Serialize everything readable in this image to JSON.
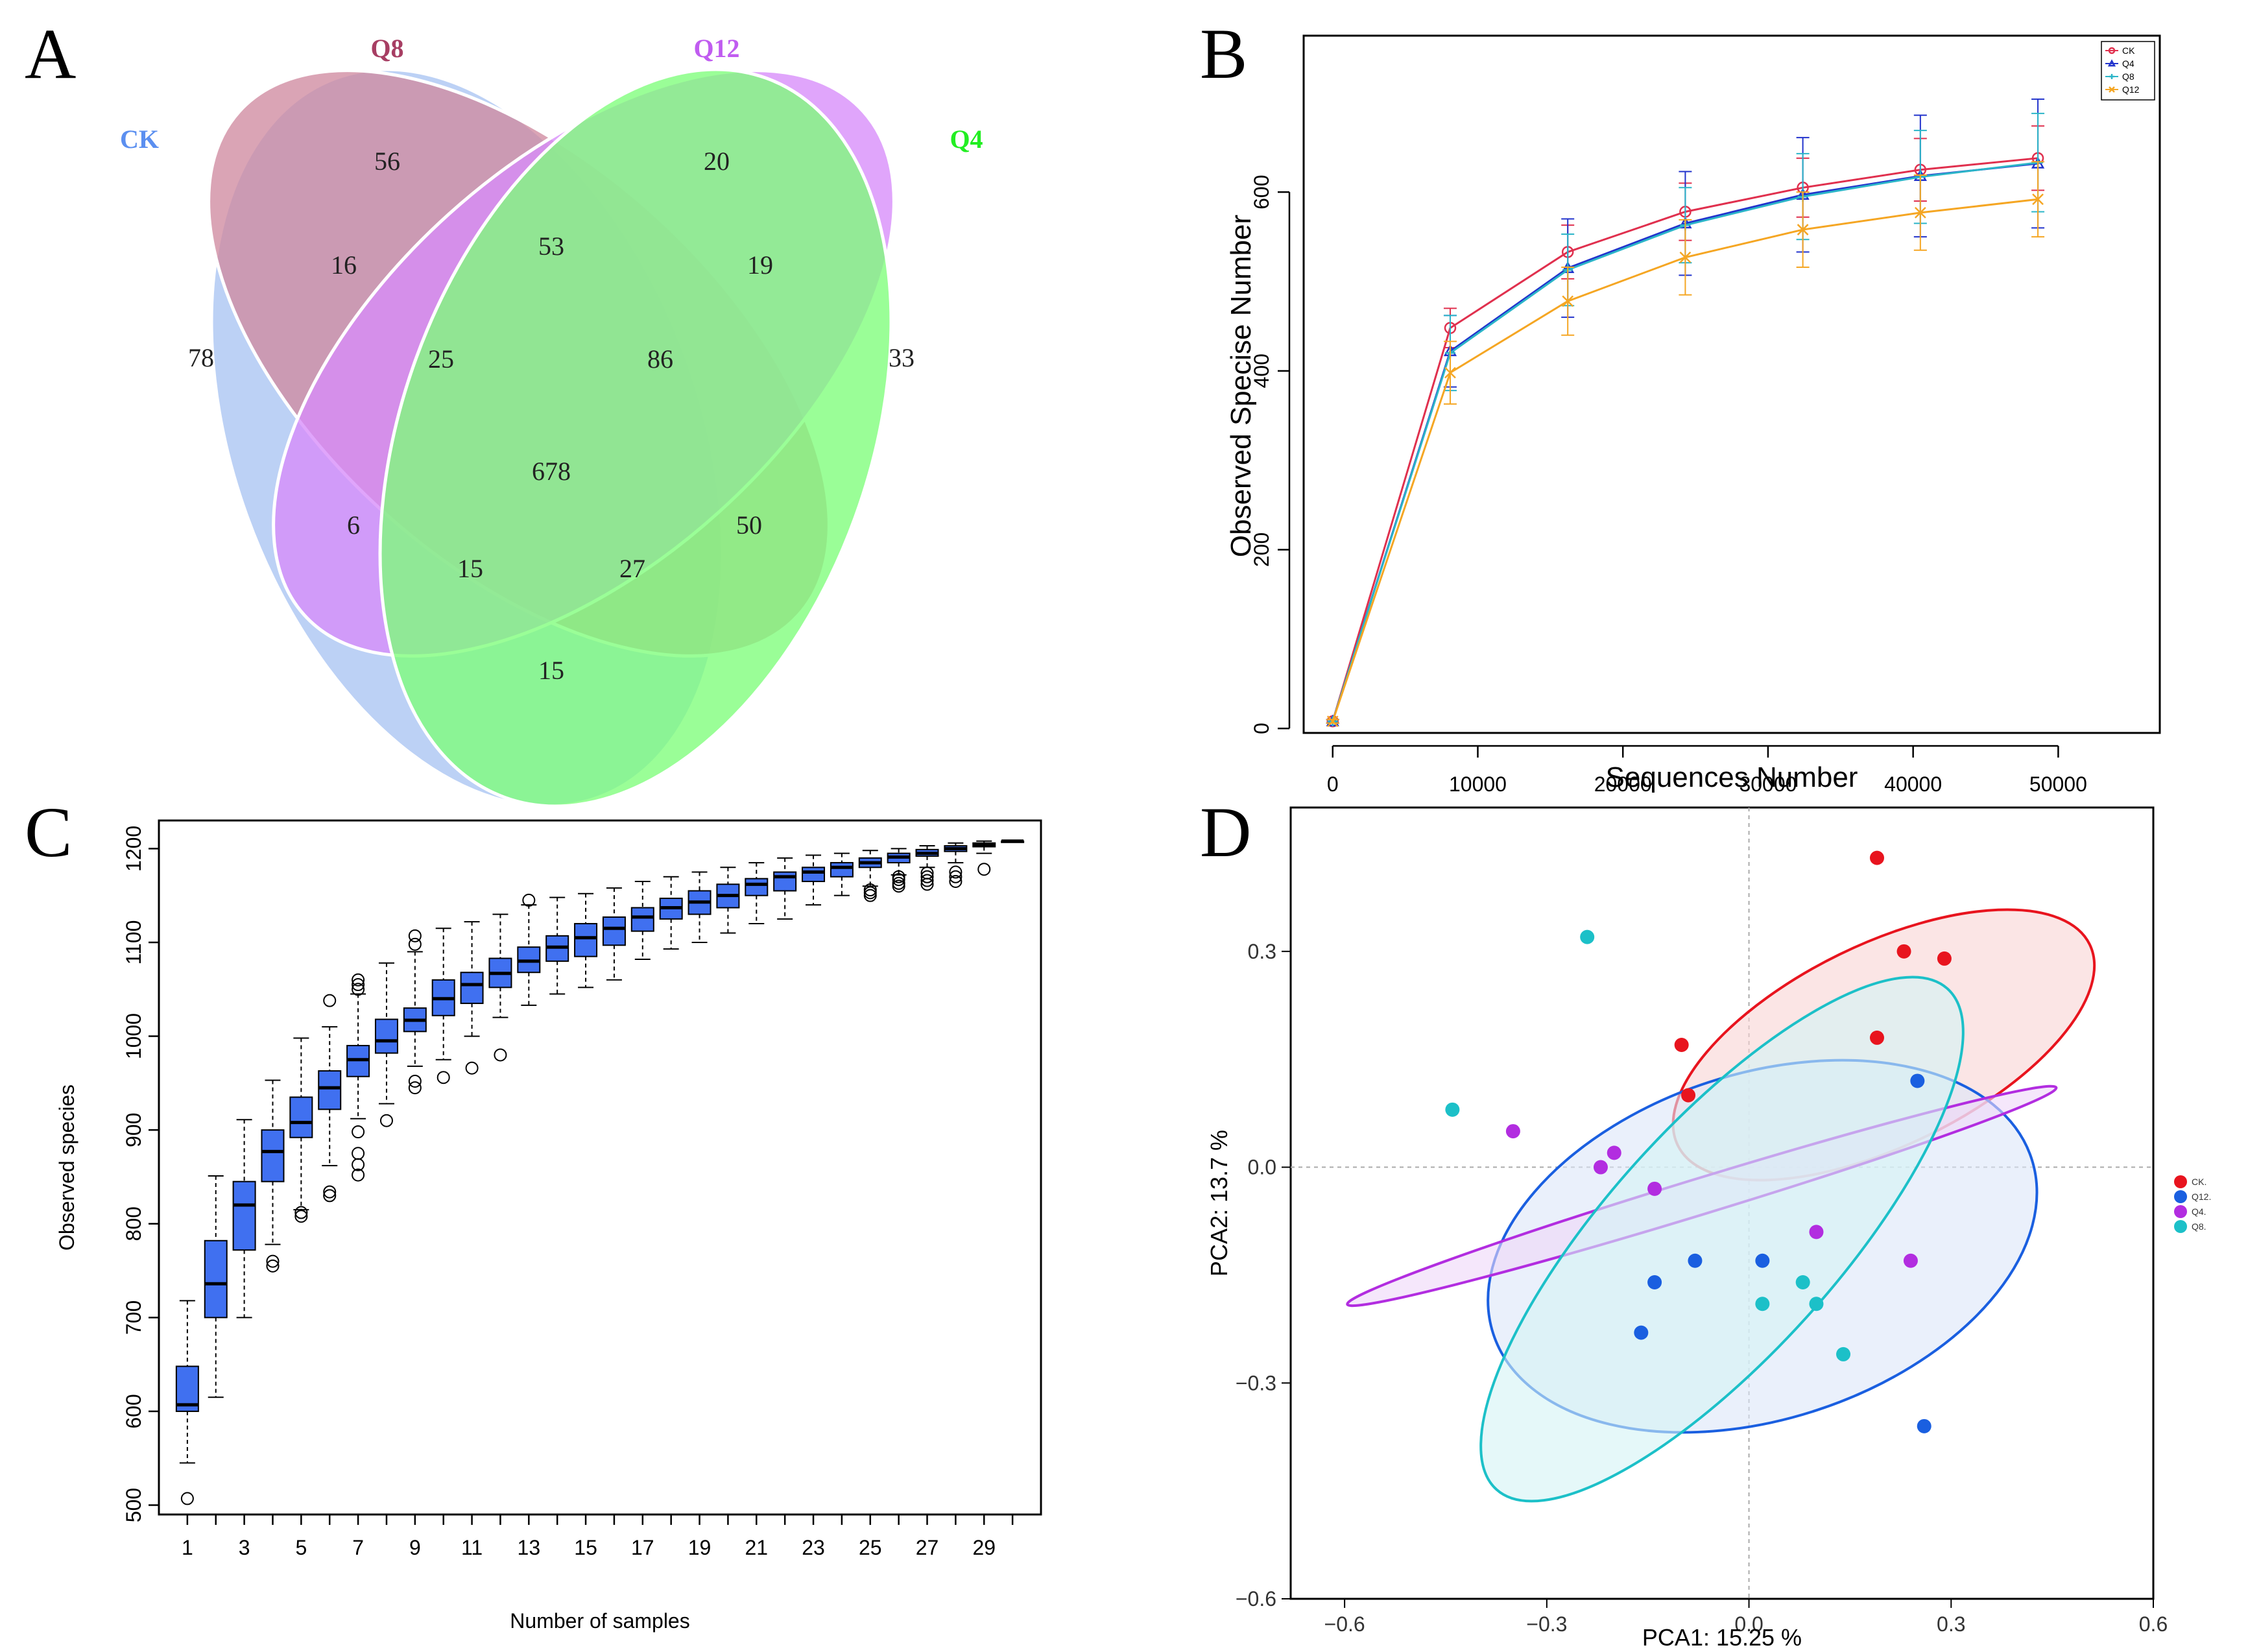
{
  "panel_letters": [
    "A",
    "B",
    "C",
    "D"
  ],
  "chart_data": [
    {
      "panel": "A",
      "type": "venn",
      "sets": [
        {
          "name": "CK",
          "color": "#5B8FF0",
          "fill": "#A9C4F2"
        },
        {
          "name": "Q8",
          "color": "#A73E63",
          "fill": "#CF8AA0"
        },
        {
          "name": "Q12",
          "color": "#C05CF0",
          "fill": "#D78CFA"
        },
        {
          "name": "Q4",
          "color": "#22EE22",
          "fill": "#7EFE7A"
        }
      ],
      "regions": [
        {
          "sets": [
            "Q8"
          ],
          "value": "56"
        },
        {
          "sets": [
            "Q12"
          ],
          "value": "20"
        },
        {
          "sets": [
            "CK"
          ],
          "value": "78"
        },
        {
          "sets": [
            "Q4"
          ],
          "value": "33"
        },
        {
          "sets": [
            "CK",
            "Q8"
          ],
          "value": "16"
        },
        {
          "sets": [
            "Q8",
            "Q12"
          ],
          "value": "53"
        },
        {
          "sets": [
            "Q12",
            "Q4"
          ],
          "value": "19"
        },
        {
          "sets": [
            "CK",
            "Q8",
            "Q12"
          ],
          "value": "25"
        },
        {
          "sets": [
            "Q8",
            "Q12",
            "Q4"
          ],
          "value": "86"
        },
        {
          "sets": [
            "CK",
            "Q12"
          ],
          "value": "6"
        },
        {
          "sets": [
            "CK",
            "Q8",
            "Q12",
            "Q4"
          ],
          "value": "678"
        },
        {
          "sets": [
            "Q8",
            "Q4"
          ],
          "value": "50"
        },
        {
          "sets": [
            "CK",
            "Q12",
            "Q4"
          ],
          "value": "15"
        },
        {
          "sets": [
            "CK",
            "Q8",
            "Q4"
          ],
          "value": "27"
        },
        {
          "sets": [
            "CK",
            "Q4"
          ],
          "value": "15"
        }
      ]
    },
    {
      "panel": "B",
      "type": "line",
      "xlabel": "Sequences Number",
      "ylabel": "Observed Specise Number",
      "xlim": [
        -2000,
        57000
      ],
      "ylim": [
        -5,
        775
      ],
      "xticks": [
        0,
        10000,
        20000,
        30000,
        40000,
        50000
      ],
      "yticks": [
        0,
        200,
        400,
        600
      ],
      "x": [
        0,
        8100,
        16200,
        24300,
        32400,
        40500,
        48600
      ],
      "legend_position": "top-right",
      "series": [
        {
          "name": "CK",
          "color": "#E0304E",
          "marker": "circle",
          "values": [
            8,
            448,
            533,
            578,
            605,
            625,
            638
          ],
          "errors": [
            2,
            22,
            30,
            32,
            33,
            35,
            36
          ]
        },
        {
          "name": "Q4",
          "color": "#2233CC",
          "marker": "triangle",
          "values": [
            8,
            422,
            515,
            565,
            597,
            618,
            632
          ],
          "errors": [
            2,
            40,
            55,
            58,
            64,
            68,
            72
          ]
        },
        {
          "name": "Q8",
          "color": "#2BB5C8",
          "marker": "plus",
          "values": [
            8,
            420,
            513,
            563,
            595,
            617,
            633
          ],
          "errors": [
            2,
            42,
            40,
            42,
            48,
            52,
            55
          ]
        },
        {
          "name": "Q12",
          "color": "#F5A623",
          "marker": "cross",
          "values": [
            8,
            398,
            478,
            527,
            558,
            577,
            592
          ],
          "errors": [
            2,
            35,
            38,
            42,
            42,
            42,
            42
          ]
        }
      ]
    },
    {
      "panel": "C",
      "type": "boxplot",
      "xlabel": "Number of samples",
      "ylabel": "Observed species",
      "xlim": [
        0,
        31
      ],
      "ylim": [
        490,
        1230
      ],
      "xticks": [
        1,
        3,
        5,
        7,
        9,
        11,
        13,
        15,
        17,
        19,
        21,
        23,
        25,
        27,
        29
      ],
      "yticks": [
        500,
        600,
        700,
        800,
        900,
        1000,
        1100,
        1200
      ],
      "box_color": "#4070F0",
      "boxes": [
        {
          "n": 1,
          "wlo": 545,
          "q1": 600,
          "med": 607,
          "q3": 648,
          "whi": 718,
          "outliers": [
            507
          ]
        },
        {
          "n": 2,
          "wlo": 615,
          "q1": 700,
          "med": 736,
          "q3": 782,
          "whi": 851,
          "outliers": []
        },
        {
          "n": 3,
          "wlo": 700,
          "q1": 772,
          "med": 820,
          "q3": 845,
          "whi": 911,
          "outliers": []
        },
        {
          "n": 4,
          "wlo": 778,
          "q1": 845,
          "med": 877,
          "q3": 900,
          "whi": 953,
          "outliers": [
            755,
            760
          ]
        },
        {
          "n": 5,
          "wlo": 815,
          "q1": 892,
          "med": 908,
          "q3": 935,
          "whi": 998,
          "outliers": [
            808,
            812
          ]
        },
        {
          "n": 6,
          "wlo": 862,
          "q1": 922,
          "med": 945,
          "q3": 963,
          "whi": 1010,
          "outliers": [
            830,
            834,
            1038
          ]
        },
        {
          "n": 7,
          "wlo": 912,
          "q1": 957,
          "med": 975,
          "q3": 990,
          "whi": 1045,
          "outliers": [
            852,
            863,
            875,
            898,
            1050,
            1055,
            1060
          ]
        },
        {
          "n": 8,
          "wlo": 928,
          "q1": 982,
          "med": 995,
          "q3": 1018,
          "whi": 1078,
          "outliers": [
            910
          ]
        },
        {
          "n": 9,
          "wlo": 968,
          "q1": 1005,
          "med": 1017,
          "q3": 1030,
          "whi": 1090,
          "outliers": [
            945,
            952,
            1098,
            1107
          ]
        },
        {
          "n": 10,
          "wlo": 975,
          "q1": 1022,
          "med": 1040,
          "q3": 1060,
          "whi": 1115,
          "outliers": [
            956
          ]
        },
        {
          "n": 11,
          "wlo": 1000,
          "q1": 1035,
          "med": 1055,
          "q3": 1068,
          "whi": 1122,
          "outliers": [
            966
          ]
        },
        {
          "n": 12,
          "wlo": 1020,
          "q1": 1052,
          "med": 1067,
          "q3": 1083,
          "whi": 1130,
          "outliers": [
            980
          ]
        },
        {
          "n": 13,
          "wlo": 1033,
          "q1": 1068,
          "med": 1080,
          "q3": 1095,
          "whi": 1140,
          "outliers": [
            1145
          ]
        },
        {
          "n": 14,
          "wlo": 1045,
          "q1": 1080,
          "med": 1095,
          "q3": 1107,
          "whi": 1148,
          "outliers": []
        },
        {
          "n": 15,
          "wlo": 1052,
          "q1": 1085,
          "med": 1105,
          "q3": 1120,
          "whi": 1152,
          "outliers": []
        },
        {
          "n": 16,
          "wlo": 1060,
          "q1": 1097,
          "med": 1115,
          "q3": 1127,
          "whi": 1158,
          "outliers": []
        },
        {
          "n": 17,
          "wlo": 1082,
          "q1": 1112,
          "med": 1127,
          "q3": 1137,
          "whi": 1165,
          "outliers": []
        },
        {
          "n": 18,
          "wlo": 1093,
          "q1": 1125,
          "med": 1137,
          "q3": 1147,
          "whi": 1170,
          "outliers": []
        },
        {
          "n": 19,
          "wlo": 1100,
          "q1": 1130,
          "med": 1143,
          "q3": 1155,
          "whi": 1175,
          "outliers": []
        },
        {
          "n": 20,
          "wlo": 1110,
          "q1": 1137,
          "med": 1150,
          "q3": 1162,
          "whi": 1180,
          "outliers": []
        },
        {
          "n": 21,
          "wlo": 1120,
          "q1": 1150,
          "med": 1162,
          "q3": 1168,
          "whi": 1185,
          "outliers": []
        },
        {
          "n": 22,
          "wlo": 1125,
          "q1": 1155,
          "med": 1170,
          "q3": 1175,
          "whi": 1190,
          "outliers": []
        },
        {
          "n": 23,
          "wlo": 1140,
          "q1": 1165,
          "med": 1175,
          "q3": 1180,
          "whi": 1193,
          "outliers": []
        },
        {
          "n": 24,
          "wlo": 1150,
          "q1": 1170,
          "med": 1180,
          "q3": 1185,
          "whi": 1195,
          "outliers": []
        },
        {
          "n": 25,
          "wlo": 1160,
          "q1": 1180,
          "med": 1185,
          "q3": 1190,
          "whi": 1198,
          "outliers": [
            1150,
            1153,
            1156
          ]
        },
        {
          "n": 26,
          "wlo": 1172,
          "q1": 1185,
          "med": 1191,
          "q3": 1195,
          "whi": 1200,
          "outliers": [
            1160,
            1163,
            1167,
            1170
          ]
        },
        {
          "n": 27,
          "wlo": 1180,
          "q1": 1192,
          "med": 1195,
          "q3": 1199,
          "whi": 1203,
          "outliers": [
            1162,
            1166,
            1170,
            1174
          ]
        },
        {
          "n": 28,
          "wlo": 1185,
          "q1": 1197,
          "med": 1200,
          "q3": 1203,
          "whi": 1206,
          "outliers": [
            1165,
            1170,
            1175
          ]
        },
        {
          "n": 29,
          "wlo": 1195,
          "q1": 1202,
          "med": 1204,
          "q3": 1206,
          "whi": 1208,
          "outliers": [
            1178
          ]
        },
        {
          "n": 30,
          "wlo": 1208,
          "q1": 1208,
          "med": 1208,
          "q3": 1208,
          "whi": 1208,
          "outliers": []
        }
      ]
    },
    {
      "panel": "D",
      "type": "scatter",
      "xlabel": "PCA1: 15.25 %",
      "ylabel": "PCA2: 13.7 %",
      "xlim": [
        -0.68,
        0.6
      ],
      "ylim": [
        -0.6,
        0.5
      ],
      "xticks": [
        -0.6,
        -0.3,
        0.0,
        0.3,
        0.6
      ],
      "xtick_labels": [
        "−0.6",
        "−0.3",
        "0.0",
        "0.3",
        "0.6"
      ],
      "yticks": [
        -0.6,
        -0.3,
        0.0,
        0.3
      ],
      "ytick_labels": [
        "−0.6",
        "−0.3",
        "0.0",
        "0.3"
      ],
      "legend_position": "right",
      "groups": [
        {
          "name": "CK.",
          "color": "#E8141E",
          "fill": "#F9D3D3",
          "points": [
            [
              0.19,
              0.43
            ],
            [
              0.23,
              0.3
            ],
            [
              0.29,
              0.29
            ],
            [
              0.19,
              0.18
            ],
            [
              -0.1,
              0.17
            ],
            [
              -0.09,
              0.1
            ]
          ],
          "ellipse": {
            "cx": 0.2,
            "cy": 0.17,
            "rx": 0.34,
            "ry": 0.14,
            "angle": -26
          }
        },
        {
          "name": "Q12.",
          "color": "#1A5FE0",
          "fill": "#DCE6F8",
          "points": [
            [
              0.25,
              0.12
            ],
            [
              0.02,
              -0.13
            ],
            [
              -0.08,
              -0.13
            ],
            [
              -0.14,
              -0.16
            ],
            [
              -0.16,
              -0.23
            ],
            [
              0.26,
              -0.36
            ]
          ],
          "ellipse": {
            "cx": 0.02,
            "cy": -0.11,
            "rx": 0.42,
            "ry": 0.24,
            "angle": -18
          }
        },
        {
          "name": "Q4.",
          "color": "#B22DE0",
          "fill": "#EFD7F9",
          "points": [
            [
              -0.35,
              0.05
            ],
            [
              -0.2,
              0.02
            ],
            [
              -0.22,
              0.0
            ],
            [
              -0.14,
              -0.03
            ],
            [
              0.1,
              -0.09
            ],
            [
              0.24,
              -0.13
            ]
          ],
          "ellipse": {
            "cx": -0.07,
            "cy": -0.04,
            "rx": 0.55,
            "ry": 0.025,
            "angle": -17
          }
        },
        {
          "name": "Q8.",
          "color": "#1CC0C8",
          "fill": "#D3F3F5",
          "points": [
            [
              -0.24,
              0.32
            ],
            [
              -0.44,
              0.08
            ],
            [
              0.08,
              -0.16
            ],
            [
              0.02,
              -0.19
            ],
            [
              0.1,
              -0.19
            ],
            [
              0.14,
              -0.26
            ]
          ],
          "ellipse": {
            "cx": -0.04,
            "cy": -0.1,
            "rx": 0.5,
            "ry": 0.16,
            "angle": -48
          }
        }
      ]
    }
  ]
}
